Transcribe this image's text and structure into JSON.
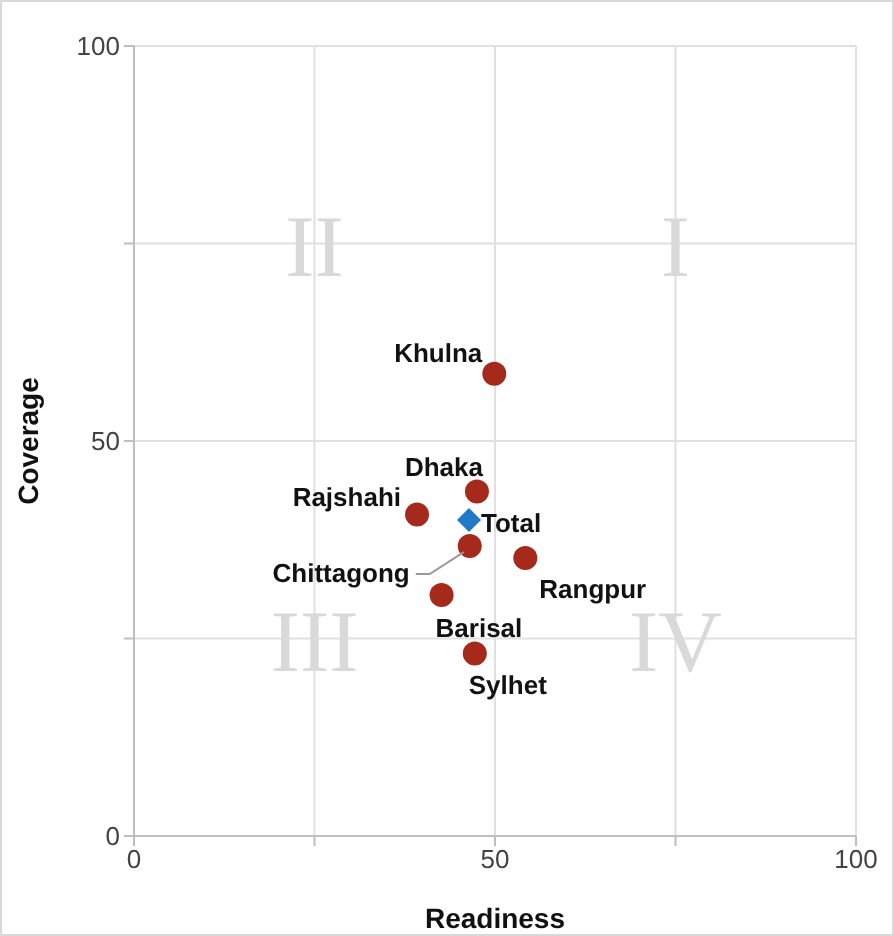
{
  "chart_data": {
    "type": "scatter",
    "xlabel": "Readiness",
    "ylabel": "Coverage",
    "xlim": [
      0,
      100
    ],
    "ylim": [
      0,
      100
    ],
    "xticks": [
      0,
      {
        "value": 25,
        "label": null
      },
      50,
      {
        "value": 75,
        "label": null
      },
      100
    ],
    "yticks": [
      0,
      {
        "value": 25,
        "label": null
      },
      50,
      {
        "value": 75,
        "label": null
      },
      100
    ],
    "grid": true,
    "series": [
      {
        "color": "#a52a1c",
        "marker": "circle",
        "x": [
          49.9,
          47.5,
          39.2,
          46.5,
          54.2,
          42.6,
          47.2
        ],
        "values": [
          58.5,
          43.6,
          40.7,
          36.7,
          35.2,
          30.5,
          23.1
        ]
      },
      {
        "color": "#1f78c8",
        "marker": "diamond",
        "x": [
          46.4
        ],
        "values": [
          40.0
        ]
      }
    ],
    "annotations": [
      "I",
      "II",
      "III",
      "IV",
      {
        "text": "Khulna",
        "x": 49.9,
        "y": 58.5
      },
      {
        "text": "Dhaka",
        "x": 47.5,
        "y": 43.6
      },
      {
        "text": "Rajshahi",
        "x": 39.2,
        "y": 40.7
      },
      {
        "text": "Chittagong",
        "x": 46.5,
        "y": 36.7
      },
      {
        "text": "Rangpur",
        "x": 54.2,
        "y": 35.2
      },
      {
        "text": "Barisal",
        "x": 42.6,
        "y": 30.5
      },
      {
        "text": "Sylhet",
        "x": 47.2,
        "y": 23.1
      },
      {
        "text": "Total",
        "x": 46.4,
        "y": 40.0
      }
    ]
  }
}
